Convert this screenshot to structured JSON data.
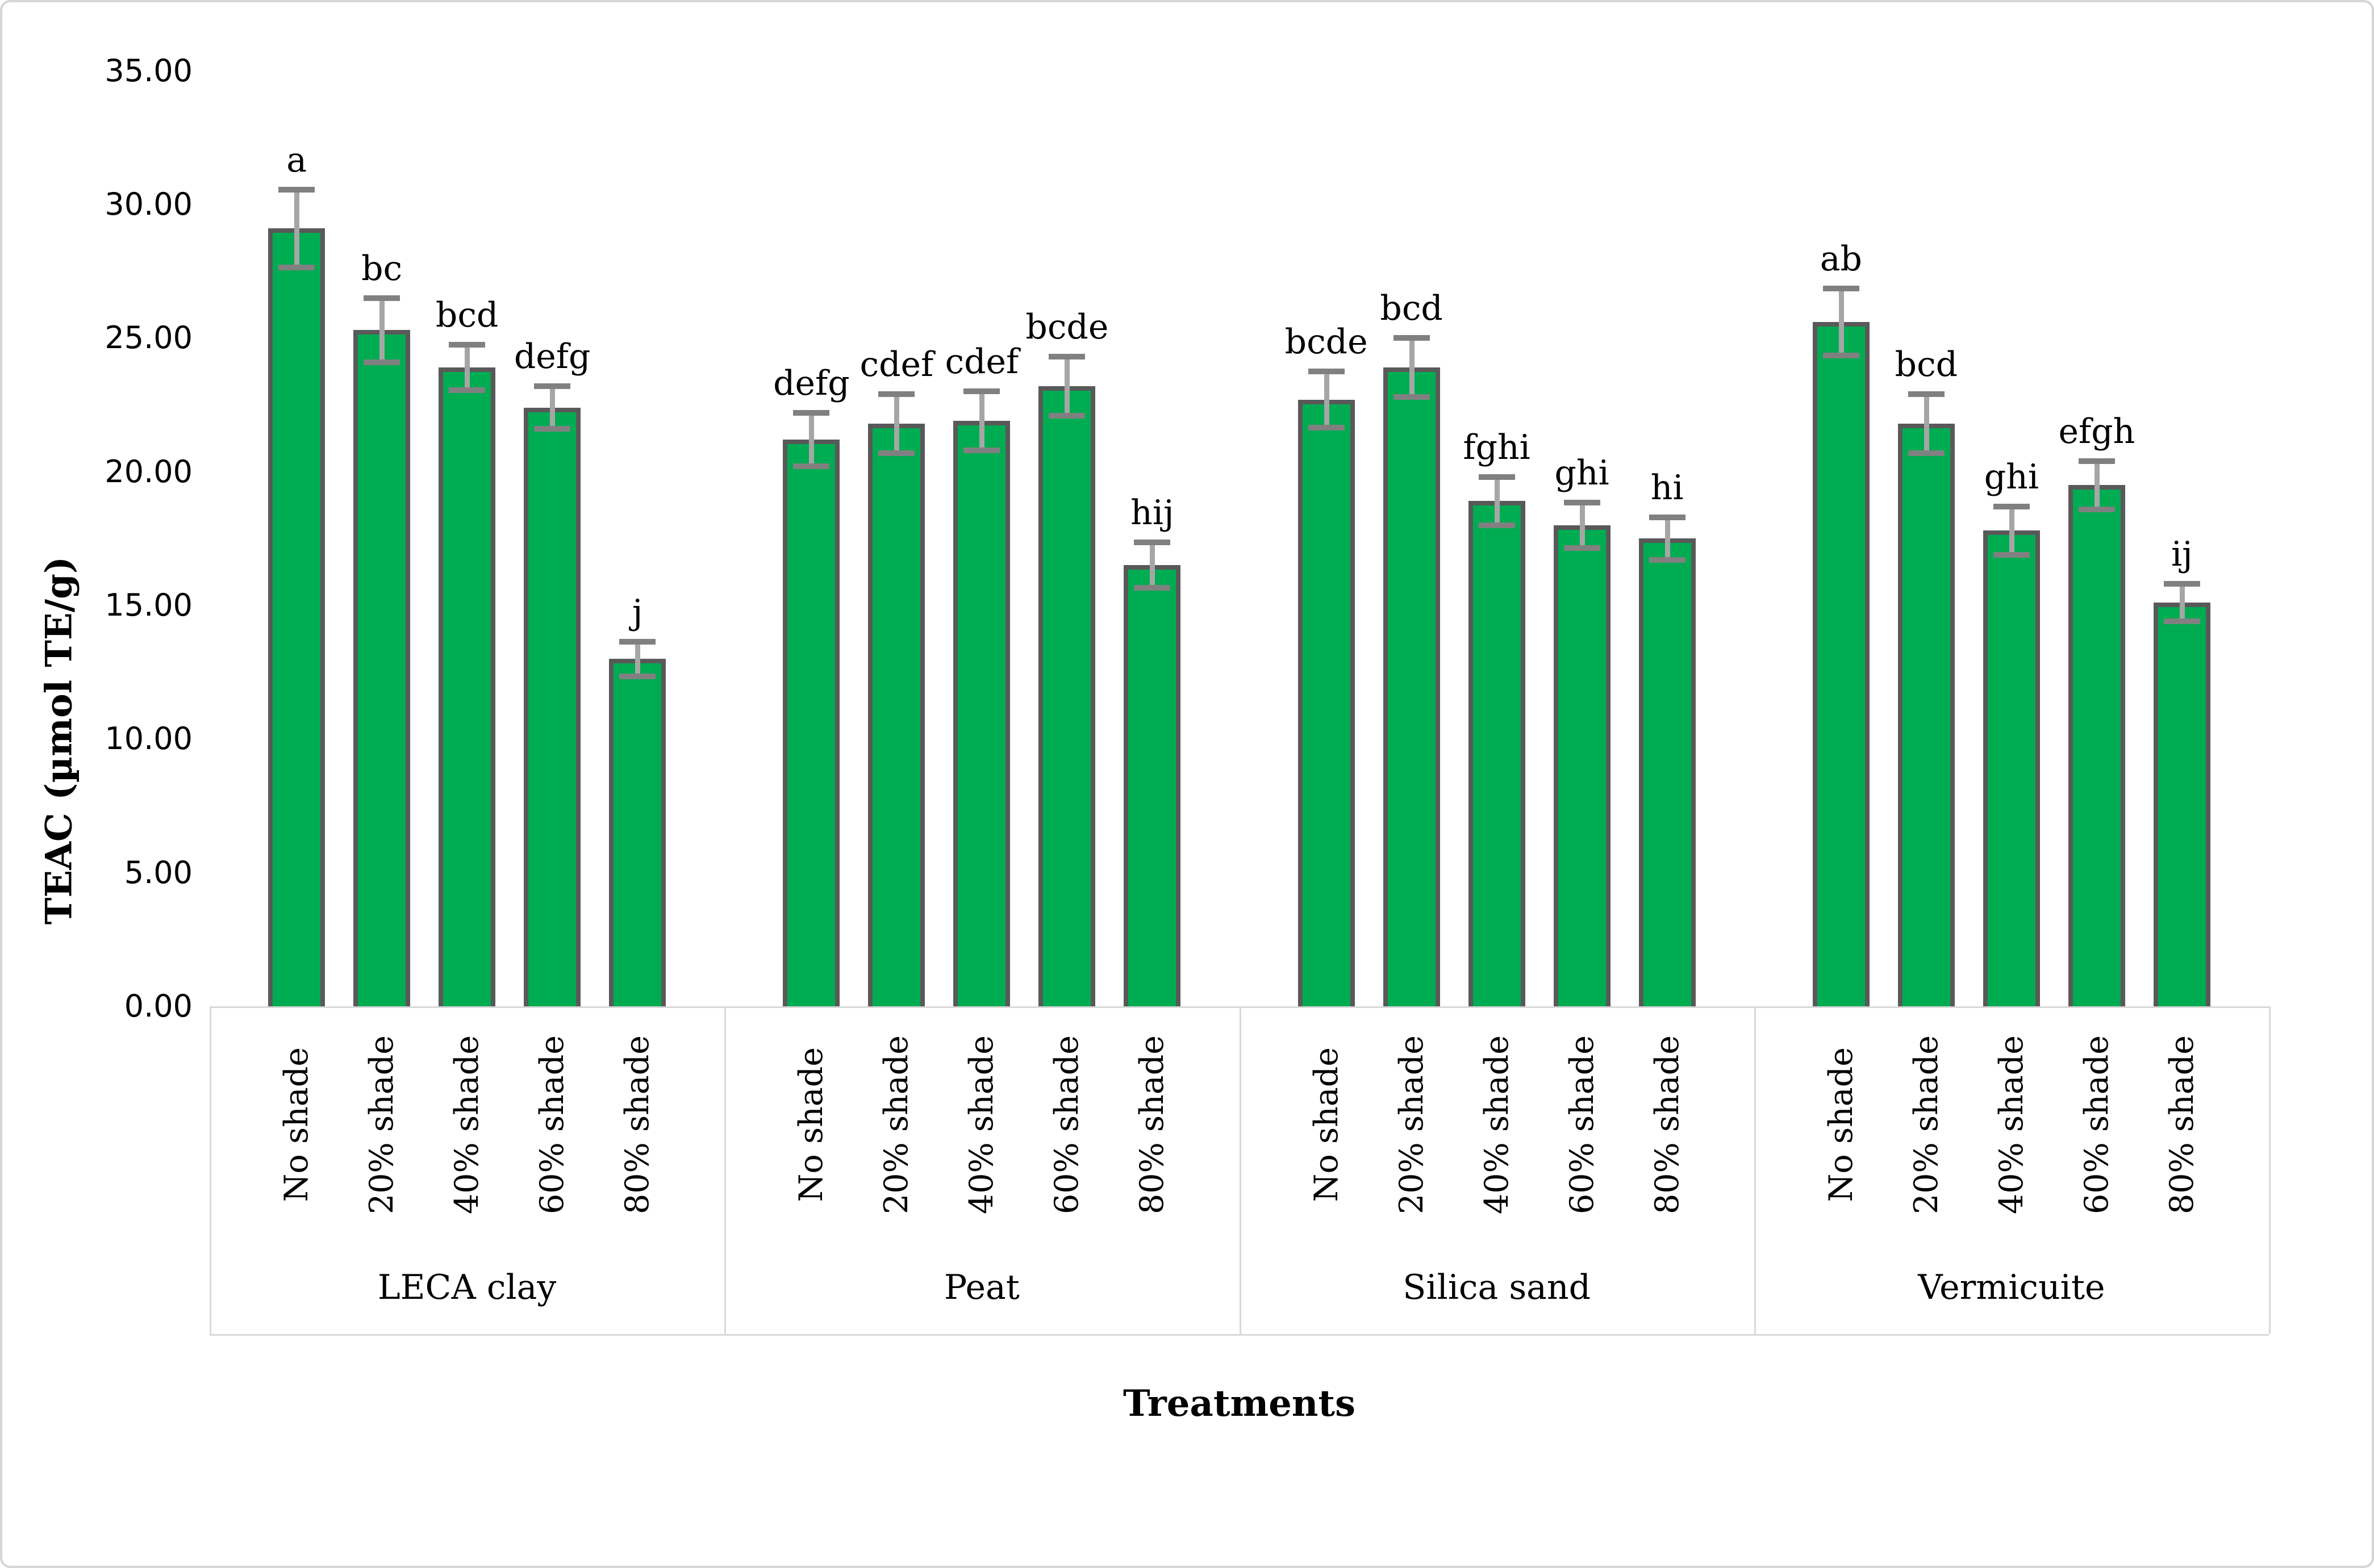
{
  "chart_data": {
    "type": "bar",
    "title": "",
    "xlabel": "Treatments",
    "ylabel": "TEAC (µmol TE/g)",
    "ylim": [
      0,
      35
    ],
    "ytick_step": 5,
    "ytick_labels": [
      "0.00",
      "5.00",
      "10.00",
      "15.00",
      "20.00",
      "25.00",
      "30.00",
      "35.00"
    ],
    "grid": "off",
    "legend": "none",
    "categories": [
      "No shade",
      "20% shade",
      "40% shade",
      "60% shade",
      "80% shade"
    ],
    "groups": [
      {
        "name": "LECA clay",
        "values": [
          29.1,
          25.3,
          23.9,
          22.4,
          13.0
        ],
        "errors": [
          1.45,
          1.2,
          0.85,
          0.8,
          0.65
        ],
        "letters": [
          "a",
          "bc",
          "bcd",
          "defg",
          "j"
        ]
      },
      {
        "name": "Peat",
        "values": [
          21.2,
          21.8,
          21.9,
          23.2,
          16.5
        ],
        "errors": [
          1.0,
          1.1,
          1.1,
          1.1,
          0.85
        ],
        "letters": [
          "defg",
          "cdef",
          "cdef",
          "bcde",
          "hij"
        ]
      },
      {
        "name": "Silica sand",
        "values": [
          22.7,
          23.9,
          18.9,
          18.0,
          17.5
        ],
        "errors": [
          1.05,
          1.1,
          0.9,
          0.85,
          0.8
        ],
        "letters": [
          "bcde",
          "bcd",
          "fghi",
          "ghi",
          "hi"
        ]
      },
      {
        "name": "Vermicuite",
        "values": [
          25.6,
          21.8,
          17.8,
          19.5,
          15.1
        ],
        "errors": [
          1.25,
          1.1,
          0.9,
          0.9,
          0.7
        ],
        "letters": [
          "ab",
          "bcd",
          "ghi",
          "efgh",
          "ij"
        ]
      }
    ],
    "bar_fill_color": "#00AC52",
    "bar_border_color": "#595959",
    "error_whisker_color": "#A6A6A6",
    "error_cap_color": "#808080",
    "axis_line_color": "#d9d9d9"
  }
}
